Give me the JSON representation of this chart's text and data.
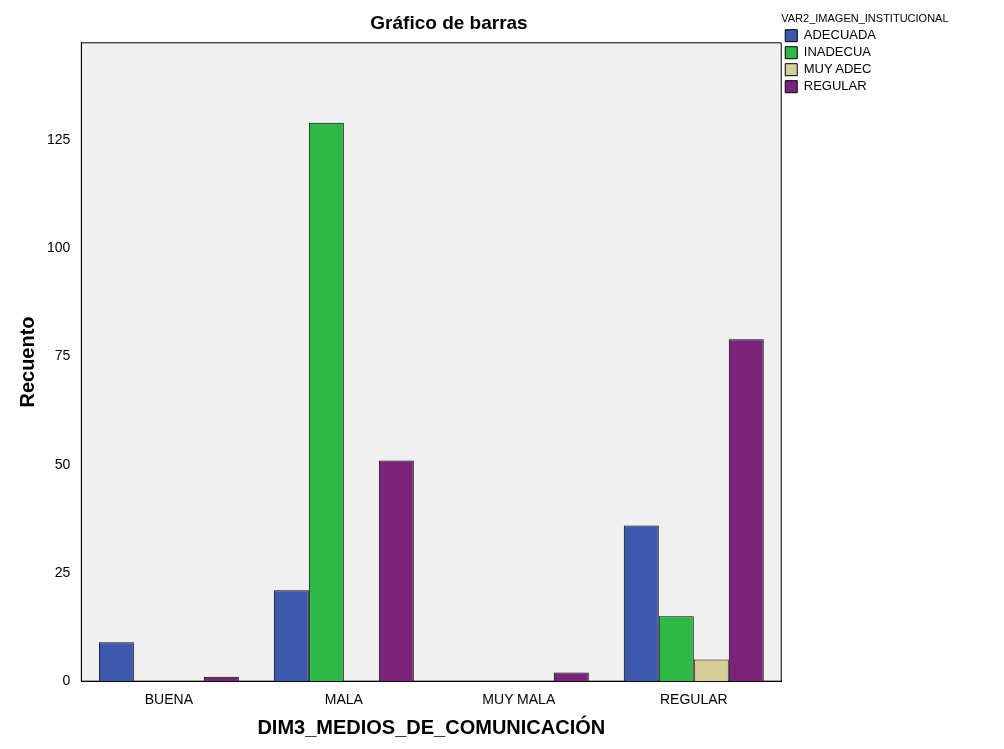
{
  "chart_data": {
    "type": "bar",
    "title": "Gráfico de barras",
    "xlabel": "DIM3_MEDIOS_DE_COMUNICACIÓN",
    "ylabel": "Recuento",
    "legend_title": "VAR2_IMAGEN_INSTITUCIONAL",
    "legend": "top right",
    "grid": false,
    "categories": [
      "BUENA",
      "MALA",
      "MUY MALA",
      "REGULAR"
    ],
    "series": [
      {
        "name": "ADECUADA",
        "color": "#3e58ac",
        "values": [
          9,
          21,
          null,
          36
        ]
      },
      {
        "name": "INADECUA",
        "color": "#2eb848",
        "values": [
          null,
          129,
          null,
          15
        ]
      },
      {
        "name": "MUY ADEC",
        "color": "#d4cf96",
        "values": [
          null,
          null,
          null,
          5
        ]
      },
      {
        "name": "REGULAR",
        "color": "#7b2379",
        "values": [
          1,
          51,
          2,
          79
        ]
      }
    ],
    "ylim": [
      0,
      147.5
    ],
    "yticks": [
      0,
      25,
      50,
      75,
      100,
      125
    ]
  }
}
